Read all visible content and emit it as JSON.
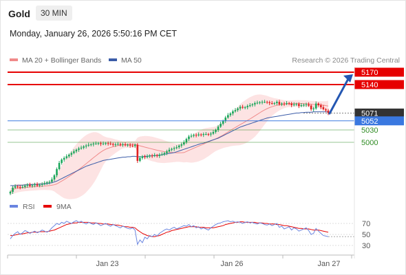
{
  "header": {
    "instrument": "Gold",
    "timeframe": "30 MIN"
  },
  "timestamp": "Monday, January 26, 2026 5:50:16 PM CET",
  "colors": {
    "up_candle": "#19a65a",
    "down_candle": "#e02222",
    "ma20": "#f08a8a",
    "bollinger_fill": "#fde3e3",
    "ma50": "#3b5ca8",
    "resistance": "#e60000",
    "support_line": "#3a78e0",
    "support_green": "#2e8b22",
    "rsi": "#6a85e0",
    "rsi_ma": "#e60000",
    "arrow": "#2457b2",
    "last_price_tag": "#333333"
  },
  "chart_data": [
    {
      "type": "candlestick",
      "legend": [
        {
          "label": "MA 20 + Bollinger Bands",
          "color": "#f08a8a"
        },
        {
          "label": "MA 50",
          "color": "#3b5ca8"
        }
      ],
      "legend_position": "top-left",
      "source": "Research © 2026 Trading Central",
      "x_ticks": [
        "Jan 23",
        "Jan 26",
        "Jan 27"
      ],
      "ylim": [
        4880,
        5190
      ],
      "grid": false,
      "last_price": 5071,
      "levels": [
        {
          "value": 5170,
          "label": "5170",
          "kind": "resistance"
        },
        {
          "value": 5140,
          "label": "5140",
          "kind": "resistance"
        },
        {
          "value": 5071,
          "label": "5071",
          "kind": "last"
        },
        {
          "value": 5052,
          "label": "5052",
          "kind": "pivot"
        },
        {
          "value": 5030,
          "label": "5030",
          "kind": "support"
        },
        {
          "value": 5000,
          "label": "5000",
          "kind": "support"
        }
      ],
      "arrow": {
        "from_value": 5070,
        "to_value": 5165,
        "direction": "up"
      },
      "close_series": [
        4880,
        4890,
        4893,
        4892,
        4891,
        4892,
        4895,
        4897,
        4894,
        4896,
        4898,
        4895,
        4897,
        4899,
        4901,
        4903,
        4904,
        4910,
        4920,
        4935,
        4950,
        4958,
        4962,
        4966,
        4970,
        4974,
        4978,
        4982,
        4985,
        4987,
        4990,
        4992,
        4994,
        4995,
        4997,
        4997,
        4998,
        4996,
        4997,
        4998,
        4997,
        4996,
        4994,
        4995,
        4996,
        4994,
        4995,
        4993,
        4994,
        4992,
        4991,
        4994,
        4955,
        4962,
        4966,
        4964,
        4966,
        4968,
        4967,
        4969,
        4967,
        4970,
        4971,
        4974,
        4978,
        4982,
        4984,
        4986,
        4988,
        4992,
        4995,
        5000,
        5008,
        5014,
        5016,
        5018,
        5017,
        5019,
        5018,
        5020,
        5020,
        5019,
        5021,
        5025,
        5030,
        5038,
        5045,
        5052,
        5060,
        5066,
        5070,
        5075,
        5078,
        5082,
        5086,
        5084,
        5085,
        5088,
        5090,
        5092,
        5095,
        5096,
        5097,
        5098,
        5098,
        5097,
        5095,
        5094,
        5095,
        5098,
        5092,
        5094,
        5093,
        5095,
        5094,
        5090,
        5092,
        5093,
        5088,
        5090,
        5091,
        5092,
        5089,
        5080,
        5082,
        5094,
        5090,
        5085,
        5080,
        5077,
        5071
      ],
      "ma50_series": [
        4895,
        4895,
        4895,
        4896,
        4896,
        4896,
        4897,
        4897,
        4897,
        4898,
        4898,
        4898,
        4899,
        4899,
        4899,
        4900,
        4901,
        4902,
        4904,
        4906,
        4909,
        4912,
        4915,
        4918,
        4921,
        4924,
        4927,
        4930,
        4933,
        4936,
        4939,
        4942,
        4944,
        4946,
        4948,
        4950,
        4952,
        4954,
        4956,
        4957,
        4958,
        4959,
        4960,
        4961,
        4962,
        4963,
        4964,
        4964,
        4965,
        4965,
        4966,
        4966,
        4965,
        4965,
        4965,
        4966,
        4966,
        4967,
        4967,
        4968,
        4968,
        4969,
        4970,
        4971,
        4972,
        4973,
        4974,
        4975,
        4977,
        4979,
        4981,
        4983,
        4985,
        4987,
        4989,
        4991,
        4993,
        4995,
        4997,
        4998,
        5000,
        5002,
        5004,
        5006,
        5008,
        5010,
        5013,
        5016,
        5019,
        5022,
        5025,
        5028,
        5031,
        5034,
        5037,
        5039,
        5041,
        5043,
        5045,
        5047,
        5049,
        5051,
        5053,
        5055,
        5057,
        5059,
        5060,
        5061,
        5062,
        5063,
        5064,
        5065,
        5066,
        5067,
        5068,
        5069,
        5070,
        5071,
        5071,
        5072,
        5072,
        5073,
        5073,
        5073,
        5074,
        5074,
        5074,
        5074,
        5074,
        5074,
        5074
      ]
    },
    {
      "type": "line",
      "legend": [
        {
          "label": "RSI",
          "color": "#6a85e0"
        },
        {
          "label": "9MA",
          "color": "#e60000"
        }
      ],
      "legend_position": "top-left",
      "ylim": [
        20,
        85
      ],
      "y_ticks": [
        70,
        50,
        30
      ],
      "reference_lines": [
        70,
        50,
        30
      ],
      "rsi_series": [
        42,
        48,
        52,
        55,
        50,
        53,
        57,
        55,
        52,
        54,
        56,
        53,
        55,
        58,
        56,
        54,
        57,
        62,
        66,
        70,
        68,
        72,
        70,
        74,
        72,
        70,
        73,
        75,
        72,
        74,
        71,
        69,
        72,
        70,
        68,
        71,
        69,
        66,
        68,
        70,
        67,
        65,
        68,
        66,
        64,
        62,
        65,
        63,
        61,
        60,
        62,
        58,
        32,
        40,
        35,
        45,
        42,
        48,
        46,
        50,
        47,
        52,
        55,
        58,
        60,
        58,
        61,
        63,
        60,
        62,
        64,
        66,
        65,
        68,
        64,
        66,
        62,
        64,
        60,
        62,
        60,
        58,
        62,
        65,
        68,
        70,
        71,
        73,
        74,
        75,
        73,
        74,
        72,
        73,
        72,
        70,
        72,
        73,
        71,
        72,
        70,
        69,
        71,
        70,
        68,
        67,
        69,
        66,
        68,
        70,
        63,
        65,
        60,
        62,
        64,
        58,
        62,
        60,
        56,
        58,
        60,
        62,
        57,
        50,
        52,
        61,
        56,
        52,
        48,
        47,
        46
      ],
      "ma9_series": [
        48,
        48,
        49,
        50,
        51,
        51,
        52,
        53,
        53,
        54,
        54,
        54,
        55,
        55,
        55,
        55,
        56,
        57,
        58,
        60,
        62,
        64,
        66,
        68,
        69,
        70,
        71,
        71,
        72,
        72,
        72,
        72,
        72,
        71,
        71,
        71,
        70,
        70,
        69,
        69,
        69,
        68,
        68,
        67,
        67,
        66,
        65,
        64,
        64,
        63,
        63,
        62,
        58,
        55,
        52,
        50,
        48,
        47,
        46,
        46,
        47,
        48,
        50,
        52,
        54,
        55,
        57,
        58,
        59,
        60,
        61,
        62,
        63,
        64,
        64,
        64,
        64,
        63,
        63,
        63,
        62,
        62,
        62,
        62,
        63,
        64,
        65,
        66,
        68,
        69,
        70,
        71,
        72,
        72,
        73,
        73,
        72,
        72,
        72,
        72,
        72,
        71,
        71,
        71,
        70,
        70,
        69,
        69,
        69,
        68,
        68,
        67,
        66,
        66,
        65,
        64,
        63,
        62,
        61,
        61,
        60,
        60,
        60,
        59,
        58,
        58,
        58,
        57,
        56,
        55,
        54
      ]
    }
  ]
}
